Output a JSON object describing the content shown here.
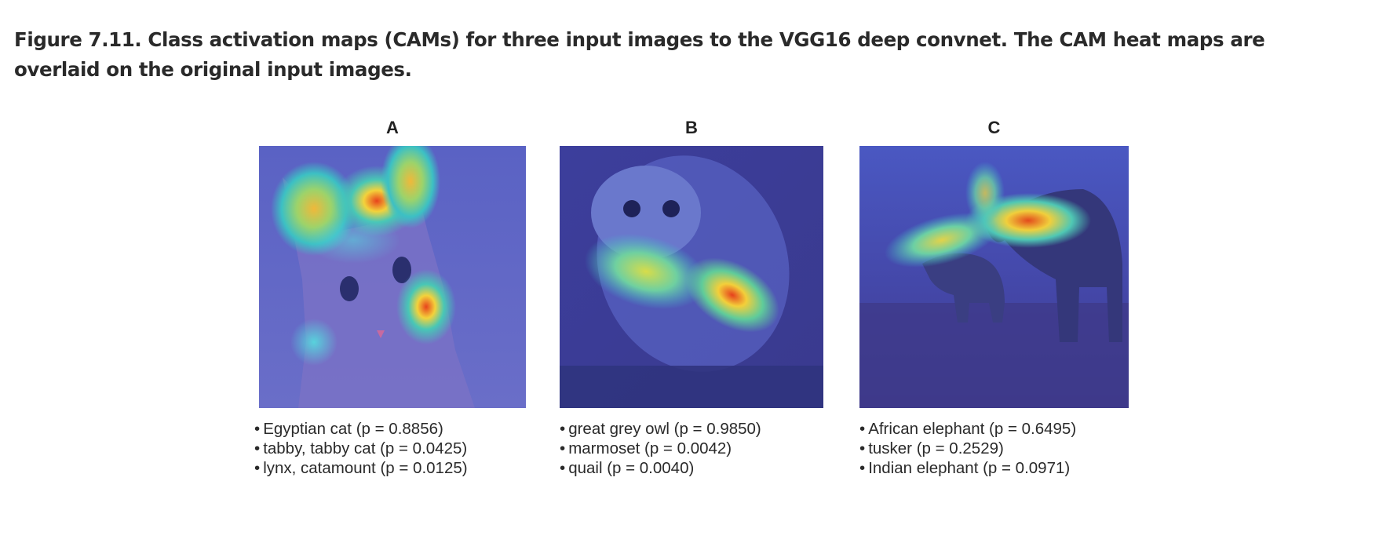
{
  "caption": "Figure 7.11. Class activation maps (CAMs) for three input images to the VGG16 deep convnet. The CAM heat maps are overlaid on the original input images.",
  "panels": [
    {
      "label": "A",
      "subject": "cat",
      "predictions": [
        "Egyptian cat (p = 0.8856)",
        "tabby, tabby cat (p = 0.0425)",
        "lynx, catamount (p = 0.0125)"
      ]
    },
    {
      "label": "B",
      "subject": "owl",
      "predictions": [
        "great grey owl (p = 0.9850)",
        "marmoset (p = 0.0042)",
        "quail (p = 0.0040)"
      ]
    },
    {
      "label": "C",
      "subject": "elephants",
      "predictions": [
        "African elephant (p = 0.6495)",
        "tusker (p = 0.2529)",
        "Indian elephant (p = 0.0971)"
      ]
    }
  ],
  "colors": {
    "base_blue": "#4a4fb8",
    "hot_red": "#e03a1a",
    "warm_yellow": "#f2e23a",
    "cool_cyan": "#35c6c8"
  }
}
